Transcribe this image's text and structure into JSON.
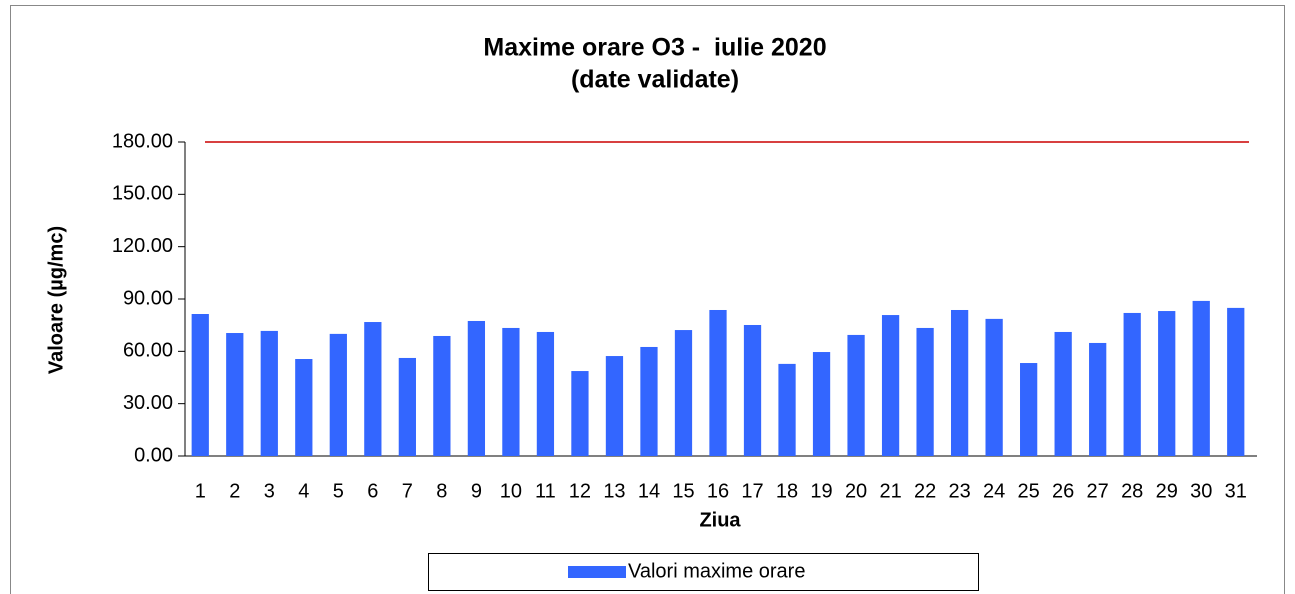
{
  "chart_data": {
    "type": "bar",
    "title": "Maxime orare O3 -  iulie 2020",
    "subtitle": "(date validate)",
    "x_label": "Ziua",
    "y_label": "Valoare (µg/mc)",
    "categories": [
      "1",
      "2",
      "3",
      "4",
      "5",
      "6",
      "7",
      "8",
      "9",
      "10",
      "11",
      "12",
      "13",
      "14",
      "15",
      "16",
      "17",
      "18",
      "19",
      "20",
      "21",
      "22",
      "23",
      "24",
      "25",
      "26",
      "27",
      "28",
      "29",
      "30",
      "31"
    ],
    "series": [
      {
        "name": "Valori maxime orare",
        "color": "#3366ff",
        "values": [
          81.4,
          70.5,
          71.7,
          55.6,
          70.0,
          76.8,
          56.2,
          68.8,
          77.4,
          73.4,
          71.1,
          48.7,
          57.3,
          62.5,
          72.2,
          83.7,
          75.1,
          52.8,
          59.6,
          69.4,
          80.8,
          73.4,
          83.7,
          78.6,
          53.3,
          71.1,
          64.8,
          82.0,
          83.1,
          88.9,
          84.9
        ]
      }
    ],
    "reference_line": {
      "value": 180,
      "color": "#cc0000"
    },
    "ylim": [
      0,
      180
    ],
    "yticks": [
      {
        "value": 0,
        "label": "0.00"
      },
      {
        "value": 30,
        "label": "30.00"
      },
      {
        "value": 60,
        "label": "60.00"
      },
      {
        "value": 90,
        "label": "90.00"
      },
      {
        "value": 120,
        "label": "120.00"
      },
      {
        "value": 150,
        "label": "150.00"
      },
      {
        "value": 180,
        "label": "180.00"
      }
    ],
    "legend": "bottom"
  }
}
